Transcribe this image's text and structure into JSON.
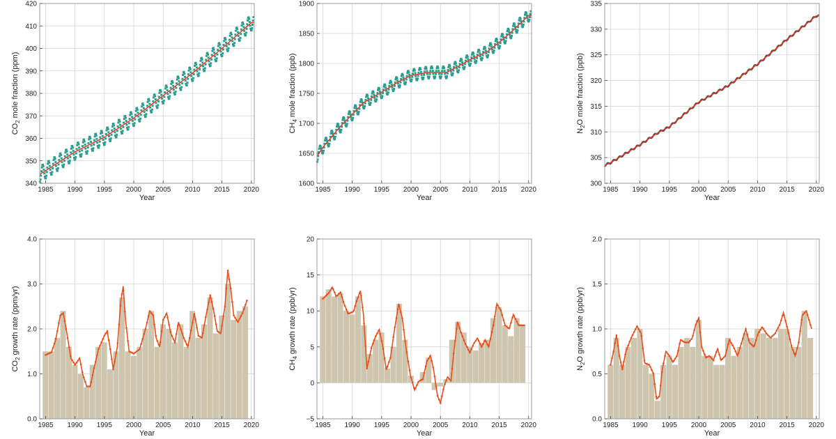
{
  "colors": {
    "points": "#2a9d8f",
    "trend": "#e8331c",
    "growth_line": "#e8501c",
    "bars": "#cdc5ad",
    "grid": "#d4d4d4",
    "frame": "#999999"
  },
  "chart_data": [
    {
      "id": "co2-conc",
      "type": "line",
      "title": "",
      "xlabel": "Year",
      "ylabel_parts": [
        "CO",
        "2",
        " mole fraction (ppm)"
      ],
      "xlim": [
        1984,
        2020.5
      ],
      "ylim": [
        340,
        420
      ],
      "xticks": [
        1985,
        1990,
        1995,
        2000,
        2005,
        2010,
        2015,
        2020
      ],
      "yticks": [
        340,
        350,
        360,
        370,
        380,
        390,
        400,
        410,
        420
      ],
      "trend_points": [
        [
          1984,
          344
        ],
        [
          1985,
          345.6
        ],
        [
          1990,
          354
        ],
        [
          1995,
          360.5
        ],
        [
          2000,
          369
        ],
        [
          2005,
          379
        ],
        [
          2010,
          389
        ],
        [
          2015,
          400
        ],
        [
          2020,
          411.5
        ]
      ],
      "seasonal_amplitude": 3.5
    },
    {
      "id": "ch4-conc",
      "type": "line",
      "title": "",
      "xlabel": "Year",
      "ylabel_parts": [
        "CH",
        "4",
        " mole fraction (ppb)"
      ],
      "xlim": [
        1984,
        2020.5
      ],
      "ylim": [
        1600,
        1900
      ],
      "xticks": [
        1985,
        1990,
        1995,
        2000,
        2005,
        2010,
        2015,
        2020
      ],
      "yticks": [
        1600,
        1650,
        1700,
        1750,
        1800,
        1850,
        1900
      ],
      "trend_points": [
        [
          1984,
          1645
        ],
        [
          1985,
          1660
        ],
        [
          1988,
          1695
        ],
        [
          1990,
          1715
        ],
        [
          1992,
          1735
        ],
        [
          1995,
          1752
        ],
        [
          1998,
          1770
        ],
        [
          2000,
          1780
        ],
        [
          2003,
          1785
        ],
        [
          2006,
          1785
        ],
        [
          2008,
          1795
        ],
        [
          2010,
          1806
        ],
        [
          2013,
          1820
        ],
        [
          2015,
          1835
        ],
        [
          2017,
          1852
        ],
        [
          2020,
          1880
        ]
      ],
      "seasonal_amplitude": 10
    },
    {
      "id": "n2o-conc",
      "type": "line",
      "title": "",
      "xlabel": "Year",
      "ylabel_parts": [
        "N",
        "2",
        "O mole fraction (ppb)"
      ],
      "xlim": [
        1984,
        2020.5
      ],
      "ylim": [
        300,
        335
      ],
      "xticks": [
        1985,
        1990,
        1995,
        2000,
        2005,
        2010,
        2015,
        2020
      ],
      "yticks": [
        300,
        305,
        310,
        315,
        320,
        325,
        330,
        335
      ],
      "trend_points": [
        [
          1984,
          303.5
        ],
        [
          1985,
          304
        ],
        [
          1990,
          307.5
        ],
        [
          1993,
          309.8
        ],
        [
          1995,
          311
        ],
        [
          2000,
          315.8
        ],
        [
          2005,
          319
        ],
        [
          2010,
          323.2
        ],
        [
          2015,
          328
        ],
        [
          2020,
          332.6
        ]
      ],
      "seasonal_amplitude": 0.2
    },
    {
      "id": "co2-growth",
      "type": "bar",
      "title": "",
      "xlabel": "Year",
      "ylabel_parts": [
        "CO",
        "2",
        " growth rate (ppm/yr)"
      ],
      "xlim": [
        1984,
        2020.5
      ],
      "ylim": [
        0,
        4
      ],
      "xticks": [
        1985,
        1990,
        1995,
        2000,
        2005,
        2010,
        2015,
        2020
      ],
      "yticks": [
        0.0,
        1.0,
        2.0,
        3.0,
        4.0
      ],
      "ytick_format": 1,
      "years": [
        1985,
        1986,
        1987,
        1988,
        1989,
        1990,
        1991,
        1992,
        1993,
        1994,
        1995,
        1996,
        1997,
        1998,
        1999,
        2000,
        2001,
        2002,
        2003,
        2004,
        2005,
        2006,
        2007,
        2008,
        2009,
        2010,
        2011,
        2012,
        2013,
        2014,
        2015,
        2016,
        2017,
        2018,
        2019
      ],
      "annual": [
        1.5,
        1.5,
        1.8,
        2.4,
        1.6,
        1.2,
        1.0,
        0.7,
        1.2,
        1.6,
        1.7,
        1.1,
        1.5,
        2.7,
        1.5,
        1.4,
        1.6,
        2.0,
        2.4,
        1.6,
        2.1,
        2.0,
        1.7,
        2.1,
        1.6,
        2.4,
        1.8,
        2.1,
        2.7,
        1.9,
        2.3,
        3.0,
        2.2,
        2.4,
        2.5
      ],
      "monthly_curve": [
        [
          1985,
          1.42
        ],
        [
          1986,
          1.48
        ],
        [
          1986.7,
          1.75
        ],
        [
          1987.5,
          2.3
        ],
        [
          1988,
          2.35
        ],
        [
          1988.5,
          2.0
        ],
        [
          1989.3,
          1.35
        ],
        [
          1990,
          1.2
        ],
        [
          1990.8,
          1.35
        ],
        [
          1991.3,
          1.0
        ],
        [
          1992,
          0.72
        ],
        [
          1992.6,
          0.72
        ],
        [
          1993.2,
          1.1
        ],
        [
          1994,
          1.55
        ],
        [
          1995,
          1.85
        ],
        [
          1995.5,
          1.95
        ],
        [
          1996,
          1.55
        ],
        [
          1996.5,
          1.1
        ],
        [
          1997.2,
          1.6
        ],
        [
          1997.8,
          2.6
        ],
        [
          1998.2,
          2.95
        ],
        [
          1998.6,
          2.2
        ],
        [
          1999.2,
          1.5
        ],
        [
          2000,
          1.45
        ],
        [
          2001,
          1.55
        ],
        [
          2002,
          2.0
        ],
        [
          2002.7,
          2.4
        ],
        [
          2003.3,
          2.3
        ],
        [
          2003.8,
          1.8
        ],
        [
          2004.4,
          1.6
        ],
        [
          2005,
          2.2
        ],
        [
          2005.6,
          2.35
        ],
        [
          2006.3,
          1.9
        ],
        [
          2007,
          1.7
        ],
        [
          2007.6,
          2.15
        ],
        [
          2008.5,
          1.8
        ],
        [
          2009.2,
          1.6
        ],
        [
          2009.8,
          2.0
        ],
        [
          2010.3,
          2.35
        ],
        [
          2011,
          1.85
        ],
        [
          2011.6,
          1.8
        ],
        [
          2012.3,
          2.3
        ],
        [
          2013,
          2.75
        ],
        [
          2013.6,
          2.4
        ],
        [
          2014.2,
          1.95
        ],
        [
          2014.8,
          1.9
        ],
        [
          2015.5,
          2.5
        ],
        [
          2016,
          3.3
        ],
        [
          2016.5,
          2.9
        ],
        [
          2017,
          2.3
        ],
        [
          2017.7,
          2.15
        ],
        [
          2018.5,
          2.35
        ],
        [
          2019.3,
          2.65
        ]
      ]
    },
    {
      "id": "ch4-growth",
      "type": "bar",
      "title": "",
      "xlabel": "Year",
      "ylabel_parts": [
        "CH",
        "4",
        " growth rate (ppb/yr)"
      ],
      "xlim": [
        1984,
        2020.5
      ],
      "ylim": [
        -5,
        20
      ],
      "xticks": [
        1985,
        1990,
        1995,
        2000,
        2005,
        2010,
        2015,
        2020
      ],
      "yticks": [
        -5,
        0,
        5,
        10,
        15,
        20
      ],
      "ytick_format": 0,
      "years": [
        1985,
        1986,
        1987,
        1988,
        1989,
        1990,
        1991,
        1992,
        1993,
        1994,
        1995,
        1996,
        1997,
        1998,
        1999,
        2000,
        2001,
        2002,
        2003,
        2004,
        2005,
        2006,
        2007,
        2008,
        2009,
        2010,
        2011,
        2012,
        2013,
        2014,
        2015,
        2016,
        2017,
        2018,
        2019
      ],
      "annual": [
        12.0,
        13.0,
        12.0,
        12.5,
        10.0,
        9.5,
        12.0,
        8.0,
        4.0,
        6.0,
        7.0,
        2.0,
        5.0,
        11.0,
        6.0,
        1.0,
        0.0,
        1.5,
        3.5,
        -1.0,
        -0.5,
        0.5,
        6.0,
        8.5,
        7.0,
        5.0,
        4.5,
        5.5,
        6.0,
        9.0,
        10.5,
        8.0,
        6.5,
        9.0,
        8.0
      ],
      "monthly_curve": [
        [
          1985,
          11.7
        ],
        [
          1986,
          12.5
        ],
        [
          1986.6,
          13.3
        ],
        [
          1987.3,
          12.0
        ],
        [
          1988,
          12.6
        ],
        [
          1988.6,
          11.0
        ],
        [
          1989.3,
          9.6
        ],
        [
          1990.2,
          9.9
        ],
        [
          1990.8,
          11.5
        ],
        [
          1991.4,
          12.8
        ],
        [
          1991.9,
          9.5
        ],
        [
          1992.5,
          2.0
        ],
        [
          1993.3,
          5.0
        ],
        [
          1994,
          6.5
        ],
        [
          1994.6,
          7.4
        ],
        [
          1995.2,
          5.0
        ],
        [
          1995.8,
          1.8
        ],
        [
          1996.5,
          3.5
        ],
        [
          1997.2,
          7.5
        ],
        [
          1997.9,
          11.0
        ],
        [
          1998.5,
          9.0
        ],
        [
          1999.2,
          4.5
        ],
        [
          1999.9,
          1.0
        ],
        [
          2000.6,
          -1.0
        ],
        [
          2001.3,
          0.2
        ],
        [
          2002,
          0.5
        ],
        [
          2002.7,
          3.0
        ],
        [
          2003.3,
          3.8
        ],
        [
          2003.8,
          2.0
        ],
        [
          2004.5,
          -1.8
        ],
        [
          2005,
          -2.8
        ],
        [
          2005.6,
          -0.5
        ],
        [
          2006.2,
          0.8
        ],
        [
          2006.8,
          0.3
        ],
        [
          2007.3,
          4.5
        ],
        [
          2007.9,
          8.5
        ],
        [
          2008.5,
          7.0
        ],
        [
          2009.2,
          5.5
        ],
        [
          2010,
          4.2
        ],
        [
          2010.7,
          5.5
        ],
        [
          2011.3,
          6.2
        ],
        [
          2012,
          5.0
        ],
        [
          2012.6,
          6.0
        ],
        [
          2013.2,
          5.0
        ],
        [
          2014,
          8.0
        ],
        [
          2014.6,
          11.0
        ],
        [
          2015.3,
          10.0
        ],
        [
          2016,
          8.0
        ],
        [
          2016.7,
          7.5
        ],
        [
          2017.4,
          9.5
        ],
        [
          2018.3,
          8.0
        ],
        [
          2019.3,
          8.0
        ]
      ]
    },
    {
      "id": "n2o-growth",
      "type": "bar",
      "title": "",
      "xlabel": "Year",
      "ylabel_parts": [
        "N",
        "2",
        "O growth rate (ppb/yr)"
      ],
      "xlim": [
        1984,
        2020.5
      ],
      "ylim": [
        0,
        2
      ],
      "xticks": [
        1985,
        1990,
        1995,
        2000,
        2005,
        2010,
        2015,
        2020
      ],
      "yticks": [
        0.0,
        0.5,
        1.0,
        1.5,
        2.0
      ],
      "ytick_format": 1,
      "years": [
        1985,
        1986,
        1987,
        1988,
        1989,
        1990,
        1991,
        1992,
        1993,
        1994,
        1995,
        1996,
        1997,
        1998,
        1999,
        2000,
        2001,
        2002,
        2003,
        2004,
        2005,
        2006,
        2007,
        2008,
        2009,
        2010,
        2011,
        2012,
        2013,
        2014,
        2015,
        2016,
        2017,
        2018,
        2019
      ],
      "annual": [
        0.6,
        0.9,
        0.6,
        0.8,
        0.9,
        1.0,
        0.6,
        0.5,
        0.2,
        0.6,
        0.7,
        0.6,
        0.8,
        0.9,
        0.8,
        1.1,
        0.7,
        0.7,
        0.6,
        0.6,
        0.9,
        0.7,
        0.8,
        0.95,
        0.9,
        1.0,
        0.95,
        0.9,
        0.9,
        1.0,
        1.0,
        0.8,
        0.8,
        1.2,
        0.9
      ],
      "monthly_curve": [
        [
          1985,
          0.6
        ],
        [
          1985.5,
          0.75
        ],
        [
          1986,
          0.93
        ],
        [
          1986.5,
          0.7
        ],
        [
          1987,
          0.55
        ],
        [
          1987.6,
          0.75
        ],
        [
          1988.5,
          0.9
        ],
        [
          1989.5,
          1.03
        ],
        [
          1990.2,
          0.95
        ],
        [
          1990.8,
          0.62
        ],
        [
          1991.6,
          0.6
        ],
        [
          1992.3,
          0.5
        ],
        [
          1992.8,
          0.22
        ],
        [
          1993.3,
          0.25
        ],
        [
          1993.8,
          0.55
        ],
        [
          1994.4,
          0.75
        ],
        [
          1995,
          0.7
        ],
        [
          1995.6,
          0.63
        ],
        [
          1996.3,
          0.7
        ],
        [
          1996.9,
          0.88
        ],
        [
          1997.6,
          0.85
        ],
        [
          1998.3,
          0.85
        ],
        [
          1998.9,
          0.9
        ],
        [
          1999.5,
          1.05
        ],
        [
          2000,
          1.12
        ],
        [
          2000.5,
          0.8
        ],
        [
          2001.2,
          0.68
        ],
        [
          2001.8,
          0.7
        ],
        [
          2002.5,
          0.65
        ],
        [
          2003.2,
          0.78
        ],
        [
          2003.8,
          0.65
        ],
        [
          2004.5,
          0.7
        ],
        [
          2005.2,
          0.88
        ],
        [
          2005.9,
          0.8
        ],
        [
          2006.6,
          0.7
        ],
        [
          2007.3,
          0.85
        ],
        [
          2008,
          1.0
        ],
        [
          2008.6,
          0.85
        ],
        [
          2009.4,
          0.8
        ],
        [
          2010.1,
          0.95
        ],
        [
          2010.8,
          1.02
        ],
        [
          2011.5,
          0.95
        ],
        [
          2012.2,
          0.9
        ],
        [
          2013,
          0.95
        ],
        [
          2013.8,
          1.05
        ],
        [
          2014.4,
          1.18
        ],
        [
          2015.1,
          1.0
        ],
        [
          2015.8,
          0.8
        ],
        [
          2016.4,
          0.7
        ],
        [
          2017,
          0.85
        ],
        [
          2017.6,
          1.15
        ],
        [
          2018.3,
          1.2
        ],
        [
          2019.2,
          1.0
        ]
      ]
    }
  ]
}
